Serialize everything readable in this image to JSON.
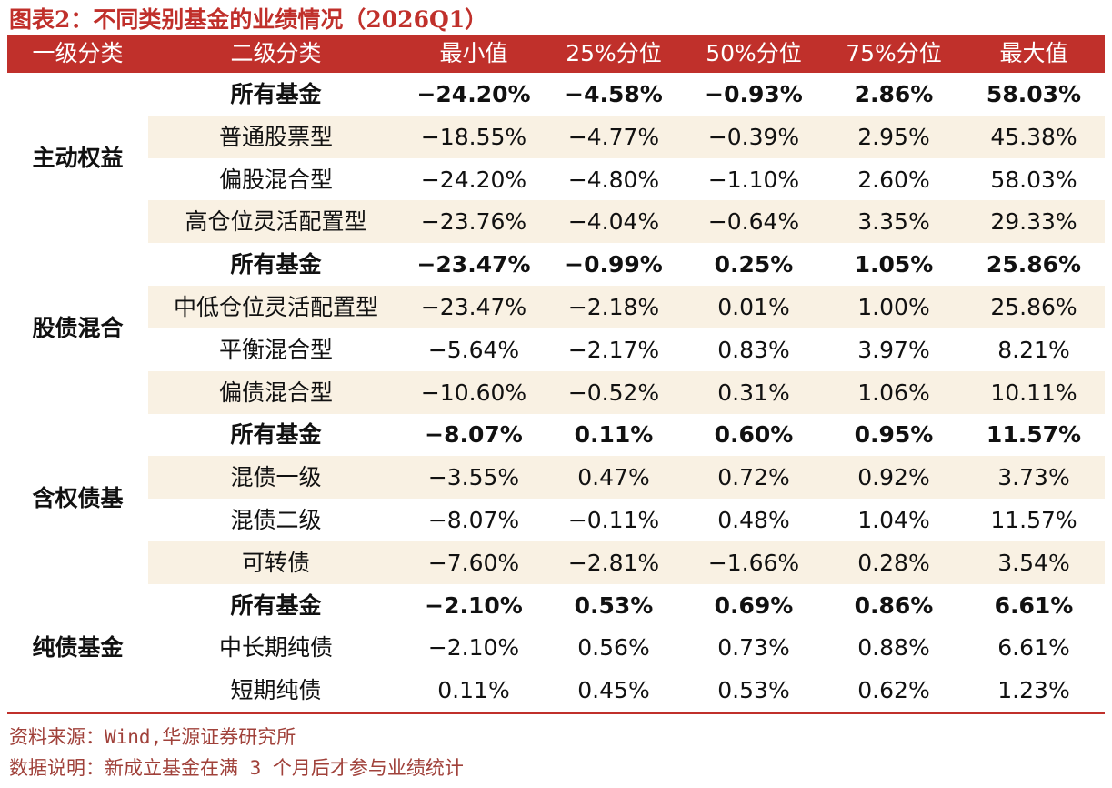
{
  "header": {
    "title": "图表2：不同类别基金的业绩情况（2026Q1）"
  },
  "table": {
    "columns": [
      "一级分类",
      "二级分类",
      "最小值",
      "25%分位",
      "50%分位",
      "75%分位",
      "最大值"
    ],
    "groups": [
      {
        "label": "主动权益",
        "rows": [
          [
            "所有基金",
            "−24.20%",
            "−4.58%",
            "−0.93%",
            "2.86%",
            "58.03%"
          ],
          [
            "普通股票型",
            "−18.55%",
            "−4.77%",
            "−0.39%",
            "2.95%",
            "45.38%"
          ],
          [
            "偏股混合型",
            "−24.20%",
            "−4.80%",
            "−1.10%",
            "2.60%",
            "58.03%"
          ],
          [
            "高仓位灵活配置型",
            "−23.76%",
            "−4.04%",
            "−0.64%",
            "3.35%",
            "29.33%"
          ]
        ]
      },
      {
        "label": "股债混合",
        "rows": [
          [
            "所有基金",
            "−23.47%",
            "−0.99%",
            "0.25%",
            "1.05%",
            "25.86%"
          ],
          [
            "中低仓位灵活配置型",
            "−23.47%",
            "−2.18%",
            "0.01%",
            "1.00%",
            "25.86%"
          ],
          [
            "平衡混合型",
            "−5.64%",
            "−2.17%",
            "0.83%",
            "3.97%",
            "8.21%"
          ],
          [
            "偏债混合型",
            "−10.60%",
            "−0.52%",
            "0.31%",
            "1.06%",
            "10.11%"
          ]
        ]
      },
      {
        "label": "含权债基",
        "rows": [
          [
            "所有基金",
            "−8.07%",
            "0.11%",
            "0.60%",
            "0.95%",
            "11.57%"
          ],
          [
            "混债一级",
            "−3.55%",
            "0.47%",
            "0.72%",
            "0.92%",
            "3.73%"
          ],
          [
            "混债二级",
            "−8.07%",
            "−0.11%",
            "0.48%",
            "1.04%",
            "11.57%"
          ],
          [
            "可转债",
            "−7.60%",
            "−2.81%",
            "−1.66%",
            "0.28%",
            "3.54%"
          ]
        ]
      },
      {
        "label": "纯债基金",
        "rows": [
          [
            "所有基金",
            "−2.10%",
            "0.53%",
            "0.69%",
            "0.86%",
            "6.61%"
          ],
          [
            "中长期纯债",
            "−2.10%",
            "0.56%",
            "0.73%",
            "0.88%",
            "6.61%"
          ],
          [
            "短期纯债",
            "0.11%",
            "0.45%",
            "0.53%",
            "0.62%",
            "1.23%"
          ]
        ]
      }
    ]
  },
  "notes": [
    "资料来源：Wind,华源证券研究所",
    "数据说明：新成立基金在满 3 个月后才参与业绩统计"
  ]
}
